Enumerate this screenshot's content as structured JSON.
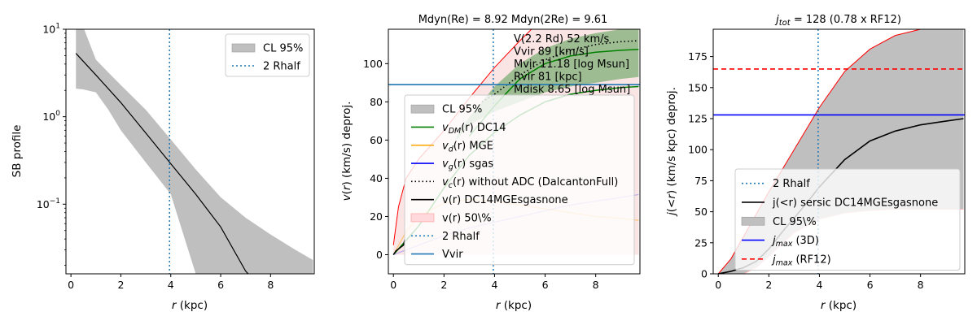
{
  "chart_data": [
    {
      "type": "line",
      "panel": "surface-brightness",
      "title": "",
      "xlabel": "r (kpc)",
      "ylabel": "SB profile",
      "xlim": [
        -0.2,
        9.75
      ],
      "ylim": [
        0.016,
        10.0
      ],
      "yscale": "log",
      "xticks": [
        0,
        2,
        4,
        6,
        8
      ],
      "yticks": [
        {
          "v": 10,
          "label": "10",
          "exp": "1"
        },
        {
          "v": 1,
          "label": "10",
          "exp": "0"
        },
        {
          "v": 0.1,
          "label": "10",
          "exp": "−1"
        }
      ],
      "grid": false,
      "legend_position": "top-right",
      "legend": [
        {
          "label": "CL 95%",
          "kind": "patch",
          "color": "#bfbfbf"
        },
        {
          "label": "2 Rhalf",
          "kind": "dotted",
          "color": "#1f77b4"
        }
      ],
      "series": [
        {
          "kind": "band",
          "color": "#bfbfbf",
          "x": [
            0.2,
            0.5,
            1,
            1.5,
            2,
            3,
            4,
            5,
            6,
            7,
            8,
            9,
            9.7
          ],
          "lower": [
            2.1,
            2.05,
            1.9,
            1.2,
            0.7,
            0.3,
            0.13,
            0.016,
            0.016,
            0.016,
            0.016,
            0.016,
            0.016
          ],
          "upper": [
            10.5,
            10.5,
            4.5,
            3.2,
            2.3,
            1.2,
            0.55,
            0.25,
            0.12,
            0.07,
            0.045,
            0.03,
            0.023
          ]
        },
        {
          "kind": "line",
          "color": "#000000",
          "x": [
            0.2,
            1,
            2,
            3,
            4,
            5,
            6,
            7,
            7.1
          ],
          "y": [
            5.3,
            3.0,
            1.45,
            0.65,
            0.29,
            0.13,
            0.055,
            0.0172,
            0.016
          ]
        },
        {
          "kind": "vline",
          "color": "#1f77b4",
          "x": 3.95
        }
      ]
    },
    {
      "type": "line",
      "panel": "velocity",
      "title": "Mdyn(Re) = 8.92  Mdyn(2Re) = 9.61",
      "xlabel": "r (kpc)",
      "ylabel": "v(r) (km/s) deproj.",
      "xlim": [
        -0.2,
        9.75
      ],
      "ylim": [
        -10,
        118
      ],
      "xticks": [
        0,
        2,
        4,
        6,
        8
      ],
      "yticks": [
        0,
        20,
        40,
        60,
        80,
        100
      ],
      "grid": false,
      "legend_position": "lower-left",
      "annotations": [
        "V(2.2 Rd) 52 km/s",
        "Vvir 89 [km/s]",
        "Mvir 11.18 [log Msun]",
        "Rvir 81 [kpc]",
        "Mdisk 8.65 [log Msun]"
      ],
      "legend": [
        {
          "label": "CL 95%",
          "kind": "patch",
          "color": "#bfbfbf"
        },
        {
          "label": "v",
          "sub": "DM",
          "tail": "(r) DC14",
          "kind": "solid",
          "color": "#008000"
        },
        {
          "label": "v",
          "sub": "d",
          "tail": "(r) MGE",
          "kind": "solid",
          "color": "#ffa500"
        },
        {
          "label": "v",
          "sub": "g",
          "tail": "(r) sgas",
          "kind": "solid",
          "color": "#0000ff"
        },
        {
          "label": "v",
          "sub": "c",
          "tail": "(r) without ADC (DalcantonFull)",
          "kind": "dotted-black",
          "color": "#000000"
        },
        {
          "label": "v(r) DC14MGEsgasnone",
          "kind": "solid",
          "color": "#000000"
        },
        {
          "label": "v(r) 50\\%",
          "kind": "patch",
          "color": "#ffd9dc"
        },
        {
          "label": "2 Rhalf",
          "kind": "dotted",
          "color": "#1f77b4"
        },
        {
          "label": "Vvir",
          "kind": "solid",
          "color": "#1f77b4"
        }
      ],
      "series": [
        {
          "kind": "band",
          "color": "#f2b3b3",
          "opacity": 0.35,
          "edge": "#ff0000",
          "x": [
            0,
            0.2,
            0.5,
            1,
            2,
            3,
            4,
            5,
            6,
            7,
            8,
            9,
            9.7
          ],
          "lower": [
            0,
            0,
            0,
            0,
            0,
            0,
            0,
            0,
            0,
            0,
            0,
            0,
            0
          ],
          "upper": [
            5,
            25,
            40,
            50,
            65,
            82,
            98,
            112,
            125,
            135,
            140,
            145,
            148
          ]
        },
        {
          "kind": "band",
          "color": "#2e8b2e",
          "opacity": 0.45,
          "x": [
            2.5,
            3,
            4,
            5,
            6,
            7,
            8,
            9,
            9.7
          ],
          "lower": [
            60,
            68,
            75,
            80,
            85,
            88,
            90,
            92,
            93
          ],
          "upper": [
            62,
            72,
            88,
            100,
            108,
            113,
            116,
            118,
            118
          ]
        },
        {
          "kind": "line",
          "color": "#008000",
          "width": 1.5,
          "x": [
            0,
            1,
            2,
            3,
            4,
            5,
            6,
            7,
            8,
            9,
            9.7
          ],
          "y": [
            0,
            15,
            35,
            52,
            64,
            73,
            80,
            84,
            86,
            87.5,
            88
          ]
        },
        {
          "kind": "line",
          "color": "#008000",
          "width": 1.5,
          "x": [
            3,
            4,
            5,
            6,
            7,
            8,
            9,
            9.7
          ],
          "y": [
            62,
            78,
            92,
            100,
            104,
            106,
            107,
            107.5
          ]
        },
        {
          "kind": "line",
          "color": "#000000",
          "dotted": true,
          "width": 1.6,
          "x": [
            3.5,
            4,
            5,
            6,
            7,
            8,
            9,
            9.7
          ],
          "y": [
            80,
            84,
            94,
            102,
            107,
            110,
            111.5,
            112
          ]
        },
        {
          "kind": "line",
          "color": "#ffa500",
          "width": 1.2,
          "opacity": 0.5,
          "x": [
            0,
            0.5,
            1,
            2,
            3,
            4,
            5,
            6,
            7,
            8,
            9,
            9.7
          ],
          "y": [
            0,
            12,
            20,
            27,
            29,
            28,
            26,
            24,
            22,
            20,
            19,
            18
          ]
        },
        {
          "kind": "line",
          "color": "#0000ff",
          "width": 1.2,
          "opacity": 0.25,
          "x": [
            0,
            1,
            2,
            3,
            4,
            5,
            6,
            7,
            8,
            9,
            9.7
          ],
          "y": [
            0,
            5,
            10,
            14,
            17,
            20,
            23,
            26,
            28,
            30,
            31.5
          ]
        },
        {
          "kind": "line",
          "color": "#000000",
          "width": 1.4,
          "x": [
            0,
            0.1,
            0.2,
            0.3,
            0.4,
            0.45
          ],
          "y": [
            0,
            2,
            3,
            4,
            5,
            8
          ]
        },
        {
          "kind": "hline",
          "color": "#1f77b4",
          "y": 89
        },
        {
          "kind": "vline",
          "color": "#1f77b4",
          "x": 3.95
        }
      ]
    },
    {
      "type": "line",
      "panel": "angular-momentum",
      "title": "j_tot = 128 (0.78 x RF12)",
      "xlabel": "r (kpc)",
      "ylabel": "j(<r) (km/s kpc) deproj.",
      "xlim": [
        -0.2,
        9.75
      ],
      "ylim": [
        0,
        197
      ],
      "xticks": [
        0,
        2,
        4,
        6,
        8
      ],
      "yticks": [
        0,
        25,
        50,
        75,
        100,
        125,
        150,
        175
      ],
      "grid": false,
      "legend_position": "lower-right",
      "legend": [
        {
          "label": "2 Rhalf",
          "kind": "dotted",
          "color": "#1f77b4"
        },
        {
          "label": "j(<r) sersic DC14MGEsgasnone",
          "kind": "solid",
          "color": "#000000"
        },
        {
          "label": "CL 95\\%",
          "kind": "patch",
          "color": "#bfbfbf"
        },
        {
          "label": "j",
          "sub": "max",
          "tail": " (3D)",
          "kind": "solid",
          "color": "#0000ff"
        },
        {
          "label": "j",
          "sub": "max",
          "tail": " (RF12)",
          "kind": "dashed",
          "color": "#ff0000"
        }
      ],
      "series": [
        {
          "kind": "band",
          "color": "#bfbfbf",
          "edge_upper": "#ff0000",
          "edge_lower": "#ffb3b3",
          "x": [
            0,
            0.5,
            1,
            1.5,
            2,
            3,
            4,
            5,
            6,
            7,
            8,
            9,
            9.7
          ],
          "lower": [
            0,
            0,
            0,
            5,
            14,
            33,
            44,
            49,
            51,
            52,
            52,
            52,
            52
          ],
          "upper": [
            0,
            12,
            30,
            48,
            66,
            100,
            134,
            163,
            181,
            192,
            197,
            197,
            197
          ]
        },
        {
          "kind": "line",
          "color": "#000000",
          "width": 1.6,
          "x": [
            0,
            0.5,
            1,
            1.5,
            2,
            2.5,
            3,
            3.5,
            4,
            5,
            6,
            7,
            8,
            9,
            9.7
          ],
          "y": [
            0,
            2,
            5,
            10,
            20,
            33,
            45,
            57,
            70,
            92,
            107,
            115,
            120,
            123,
            125
          ]
        },
        {
          "kind": "hline",
          "color": "#0000ff",
          "y": 128
        },
        {
          "kind": "hline",
          "color": "#ff0000",
          "y": 165,
          "dashed": true
        },
        {
          "kind": "vline",
          "color": "#1f77b4",
          "x": 3.95
        }
      ]
    }
  ]
}
